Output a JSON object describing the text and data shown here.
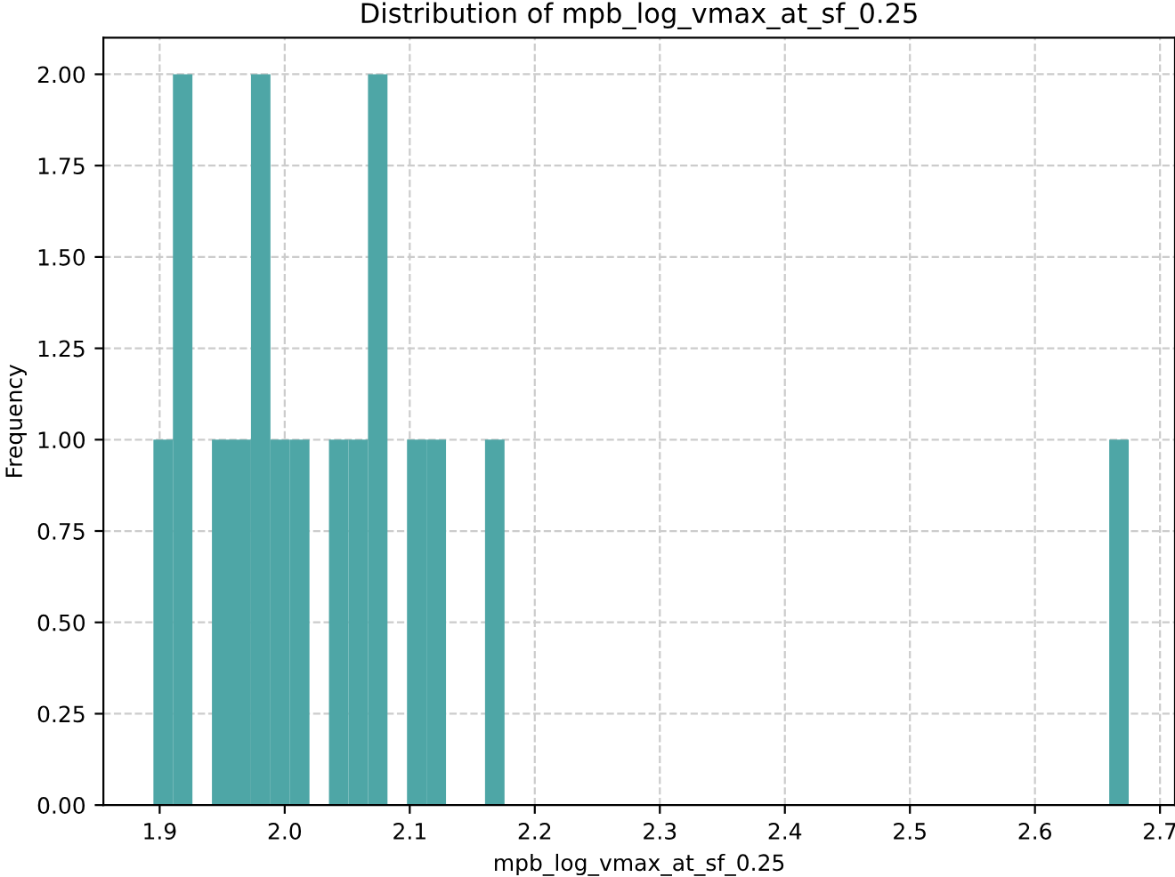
{
  "chart_data": {
    "type": "histogram",
    "title": "Distribution of mpb_log_vmax_at_sf_0.25",
    "xlabel": "mpb_log_vmax_at_sf_0.25",
    "ylabel": "Frequency",
    "bins": [
      1.895,
      1.9106,
      1.9262,
      1.9418,
      1.9574,
      1.973,
      1.9886,
      2.0042,
      2.0198,
      2.0354,
      2.051,
      2.0666,
      2.0822,
      2.0978,
      2.1134,
      2.129,
      2.1446,
      2.1602,
      2.1758,
      2.1914,
      2.207,
      2.2226,
      2.2382,
      2.2538,
      2.2694,
      2.285,
      2.3006,
      2.3162,
      2.3318,
      2.3474,
      2.363,
      2.3786,
      2.3942,
      2.4098,
      2.4254,
      2.441,
      2.4566,
      2.4722,
      2.4878,
      2.5034,
      2.519,
      2.5346,
      2.5502,
      2.5658,
      2.5814,
      2.597,
      2.6126,
      2.6282,
      2.6438,
      2.6594,
      2.675
    ],
    "values": [
      1,
      2,
      0,
      1,
      1,
      2,
      1,
      1,
      0,
      1,
      1,
      2,
      0,
      1,
      1,
      0,
      0,
      1,
      0,
      0,
      0,
      0,
      0,
      0,
      0,
      0,
      0,
      0,
      0,
      0,
      0,
      0,
      0,
      0,
      0,
      0,
      0,
      0,
      0,
      0,
      0,
      0,
      0,
      0,
      0,
      0,
      0,
      0,
      0,
      1
    ],
    "color": "#4ea6a6",
    "xlim": [
      1.855,
      2.712
    ],
    "ylim": [
      0,
      2.1
    ],
    "xticks": [
      {
        "value": 1.9,
        "label": "1.9"
      },
      {
        "value": 2.0,
        "label": "2.0"
      },
      {
        "value": 2.1,
        "label": "2.1"
      },
      {
        "value": 2.2,
        "label": "2.2"
      },
      {
        "value": 2.3,
        "label": "2.3"
      },
      {
        "value": 2.4,
        "label": "2.4"
      },
      {
        "value": 2.5,
        "label": "2.5"
      },
      {
        "value": 2.6,
        "label": "2.6"
      },
      {
        "value": 2.7,
        "label": "2.7"
      }
    ],
    "yticks": [
      {
        "value": 0,
        "label": "0.00"
      },
      {
        "value": 0.25,
        "label": "0.25"
      },
      {
        "value": 0.5,
        "label": "0.50"
      },
      {
        "value": 0.75,
        "label": "0.75"
      },
      {
        "value": 1.0,
        "label": "1.00"
      },
      {
        "value": 1.25,
        "label": "1.25"
      },
      {
        "value": 1.5,
        "label": "1.50"
      },
      {
        "value": 1.75,
        "label": "1.75"
      },
      {
        "value": 2.0,
        "label": "2.00"
      }
    ],
    "grid": true,
    "line_style": "dashed"
  }
}
